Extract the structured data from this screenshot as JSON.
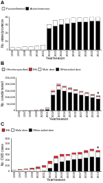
{
  "chart_data": [
    {
      "type": "bar",
      "title": "A",
      "stacked": true,
      "grid": false,
      "legend": "top",
      "x_label": "Year/season",
      "y_label": "No. states/provinces",
      "categories": [
        "1996",
        "1997",
        "1998",
        "1999",
        "2000",
        "2001",
        "2002",
        "2003",
        "2004",
        "2005",
        "2006",
        "2007",
        "2008",
        "2009",
        "2010"
      ],
      "series": [
        {
          "name": "Passive/limited",
          "color": "#ffffff",
          "values": [
            3,
            3,
            4,
            4,
            5,
            6,
            5,
            7,
            6,
            6,
            6,
            5,
            5,
            5,
            5
          ]
        },
        {
          "name": "Active/extensive",
          "color": "#000000",
          "values": [
            0,
            0,
            0,
            0,
            0,
            0,
            26,
            29,
            31,
            32,
            33,
            34,
            34,
            35,
            35
          ]
        }
      ],
      "ylim": [
        0,
        40
      ],
      "yticks": [
        0,
        10,
        20,
        30,
        40
      ]
    },
    {
      "type": "bar",
      "title": "B",
      "stacked": true,
      "grid": false,
      "legend": "top",
      "x_label": "Year/season",
      "y_label": "No. cervids tested",
      "categories": [
        "1996",
        "1997",
        "1998",
        "1999",
        "2000",
        "2001",
        "2002",
        "2003",
        "2004",
        "2005",
        "2006",
        "2007",
        "2008",
        "2009",
        "2010"
      ],
      "series": [
        {
          "name": "Other/unspecified",
          "color": "#d9d9d9",
          "values": [
            500,
            500,
            1000,
            1000,
            1000,
            2000,
            5000,
            8000,
            6000,
            5000,
            5000,
            4000,
            4000,
            4000,
            3000
          ]
        },
        {
          "name": "Elk",
          "color": "#d7262b",
          "values": [
            500,
            500,
            1000,
            1000,
            2000,
            4000,
            10000,
            12000,
            10000,
            9000,
            8000,
            8000,
            7000,
            6000,
            6000
          ]
        },
        {
          "name": "Mule deer",
          "color": "#ffffff",
          "values": [
            1000,
            1500,
            2000,
            3000,
            4000,
            8000,
            20000,
            25000,
            25000,
            22000,
            20000,
            18000,
            18000,
            15000,
            15000
          ]
        },
        {
          "name": "White-tailed deer",
          "color": "#000000",
          "values": [
            1000,
            1500,
            2000,
            3000,
            5000,
            10000,
            120000,
            160000,
            150000,
            140000,
            130000,
            120000,
            110000,
            100000,
            90000
          ]
        }
      ],
      "ylim": [
        0,
        250000
      ],
      "yticks": [
        0,
        {
          "value": 50000,
          "label": "50,000"
        },
        {
          "value": 100000,
          "label": "100,000"
        },
        {
          "value": 150000,
          "label": "150,000"
        },
        {
          "value": 200000,
          "label": "200,000"
        },
        {
          "value": 250000,
          "label": "250,000"
        }
      ],
      "annotations": [
        {
          "text": "*",
          "category": "2010"
        }
      ]
    },
    {
      "type": "bar",
      "title": "C",
      "stacked": true,
      "grid": false,
      "legend": "top",
      "x_label": "Year/season",
      "y_label": "No. CWD cases",
      "categories": [
        "1996",
        "1997",
        "1998",
        "1999",
        "2000",
        "2001",
        "2002",
        "2003",
        "2004",
        "2005",
        "2006",
        "2007",
        "2008",
        "2009",
        "2010"
      ],
      "series": [
        {
          "name": "Elk",
          "color": "#d7262b",
          "values": [
            10,
            15,
            20,
            25,
            35,
            40,
            50,
            45,
            45,
            35,
            40,
            40,
            45,
            40,
            35
          ]
        },
        {
          "name": "Mule deer",
          "color": "#ffffff",
          "values": [
            20,
            25,
            30,
            40,
            50,
            60,
            80,
            90,
            90,
            80,
            85,
            80,
            90,
            100,
            90
          ]
        },
        {
          "name": "White-tailed deer",
          "color": "#000000",
          "values": [
            0,
            0,
            0,
            0,
            0,
            10,
            60,
            150,
            180,
            200,
            220,
            230,
            250,
            270,
            260
          ]
        }
      ],
      "ylim": [
        0,
        600
      ],
      "yticks": [
        0,
        100,
        200,
        300,
        400,
        500,
        600
      ],
      "annotations": [
        {
          "text": "*",
          "category": "2010"
        }
      ]
    }
  ]
}
